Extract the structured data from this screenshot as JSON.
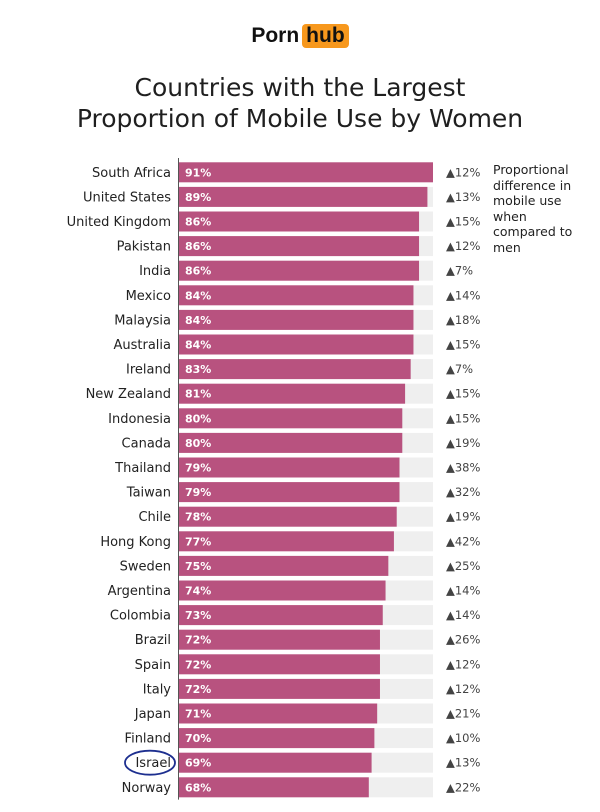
{
  "brand": {
    "name_part1": "Porn",
    "name_part2": "hub",
    "accent_color": "#f7981d"
  },
  "side_note": "Proportional difference in mobile use when compared to men",
  "highlight": {
    "country": "Israel",
    "circle_color": "#1d2f8f"
  },
  "colors": {
    "bar": "#b8527f",
    "track": "#efefef"
  },
  "chart_data": {
    "type": "bar",
    "orientation": "horizontal",
    "title": "Countries with the Largest Proportion of Mobile Use by Women",
    "title_lines": [
      "Countries with the Largest",
      "Proportion of Mobile Use by Women"
    ],
    "xlim": [
      0,
      100
    ],
    "value_unit": "%",
    "categories": [
      "South Africa",
      "United States",
      "United Kingdom",
      "Pakistan",
      "India",
      "Mexico",
      "Malaysia",
      "Australia",
      "Ireland",
      "New Zealand",
      "Indonesia",
      "Canada",
      "Thailand",
      "Taiwan",
      "Chile",
      "Hong Kong",
      "Sweden",
      "Argentina",
      "Colombia",
      "Brazil",
      "Spain",
      "Italy",
      "Japan",
      "Finland",
      "Israel",
      "Norway"
    ],
    "values": [
      91,
      89,
      86,
      86,
      86,
      84,
      84,
      84,
      83,
      81,
      80,
      80,
      79,
      79,
      78,
      77,
      75,
      74,
      73,
      72,
      72,
      72,
      71,
      70,
      69,
      68
    ],
    "value_labels": [
      "91%",
      "89%",
      "86%",
      "86%",
      "86%",
      "84%",
      "84%",
      "84%",
      "83%",
      "81%",
      "80%",
      "80%",
      "79%",
      "79%",
      "78%",
      "77%",
      "75%",
      "74%",
      "73%",
      "72%",
      "72%",
      "72%",
      "71%",
      "70%",
      "69%",
      "68%"
    ],
    "differences": [
      "▲12%",
      "▲13%",
      "▲15%",
      "▲12%",
      "▲7%",
      "▲14%",
      "▲18%",
      "▲15%",
      "▲7%",
      "▲15%",
      "▲15%",
      "▲19%",
      "▲38%",
      "▲32%",
      "▲19%",
      "▲42%",
      "▲25%",
      "▲14%",
      "▲14%",
      "▲26%",
      "▲12%",
      "▲12%",
      "▲21%",
      "▲10%",
      "▲13%",
      "▲22%"
    ]
  }
}
